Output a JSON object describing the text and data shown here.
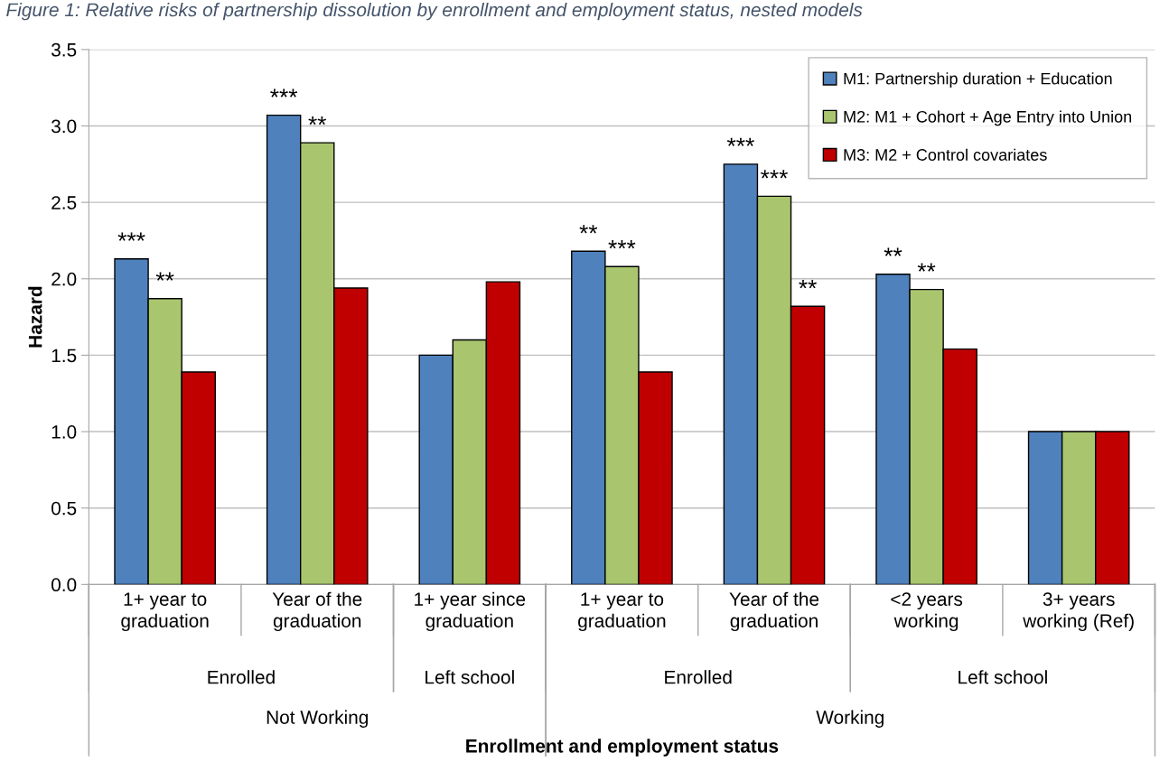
{
  "chart_data": {
    "type": "bar",
    "title": "Figure 1: Relative risks of partnership dissolution by enrollment and employment status, nested models",
    "ylabel": "Hazard",
    "categories": [
      "1+ year to\ngraduation",
      "Year of the\ngraduation",
      "1+ year since\ngraduation",
      "1+ year to\ngraduation",
      "Year of the\ngraduation",
      "<2 years\nworking",
      "3+ years\nworking (Ref)"
    ],
    "annotations": [
      "Enrolled",
      "Left school",
      "Enrolled",
      "Left school",
      "Not Working",
      "Working",
      "Enrollment and employment status"
    ],
    "series": [
      {
        "name": "M1: Partnership duration + Education",
        "color": "#4f81bd",
        "values": [
          2.13,
          3.07,
          1.5,
          2.18,
          2.75,
          2.03,
          1.0
        ],
        "value_labels": [
          "***",
          "***",
          null,
          "**",
          "***",
          "**",
          null
        ]
      },
      {
        "name": "M2: M1 + Cohort + Age Entry into Union",
        "color": "#a9c66f",
        "values": [
          1.87,
          2.89,
          1.6,
          2.08,
          2.54,
          1.93,
          1.0
        ],
        "value_labels": [
          "**",
          "**",
          null,
          "***",
          "***",
          "**",
          null
        ]
      },
      {
        "name": "M3: M2 + Control covariates",
        "color": "#c00000",
        "values": [
          1.39,
          1.94,
          1.98,
          1.39,
          1.82,
          1.54,
          1.0
        ],
        "value_labels": [
          null,
          null,
          null,
          null,
          "**",
          null,
          null
        ]
      }
    ],
    "ylim": [
      0,
      3.5
    ],
    "yticks": [
      {
        "value": 0,
        "label": "0.0"
      },
      {
        "value": 0.5,
        "label": "0.5"
      },
      {
        "value": 1,
        "label": "1.0"
      },
      {
        "value": 1.5,
        "label": "1.5"
      },
      {
        "value": 2,
        "label": "2.0"
      },
      {
        "value": 2.5,
        "label": "2.5"
      },
      {
        "value": 3,
        "label": "3.0"
      },
      {
        "value": 3.5,
        "label": "3.5"
      }
    ],
    "grid": "y",
    "legend": "top right"
  }
}
